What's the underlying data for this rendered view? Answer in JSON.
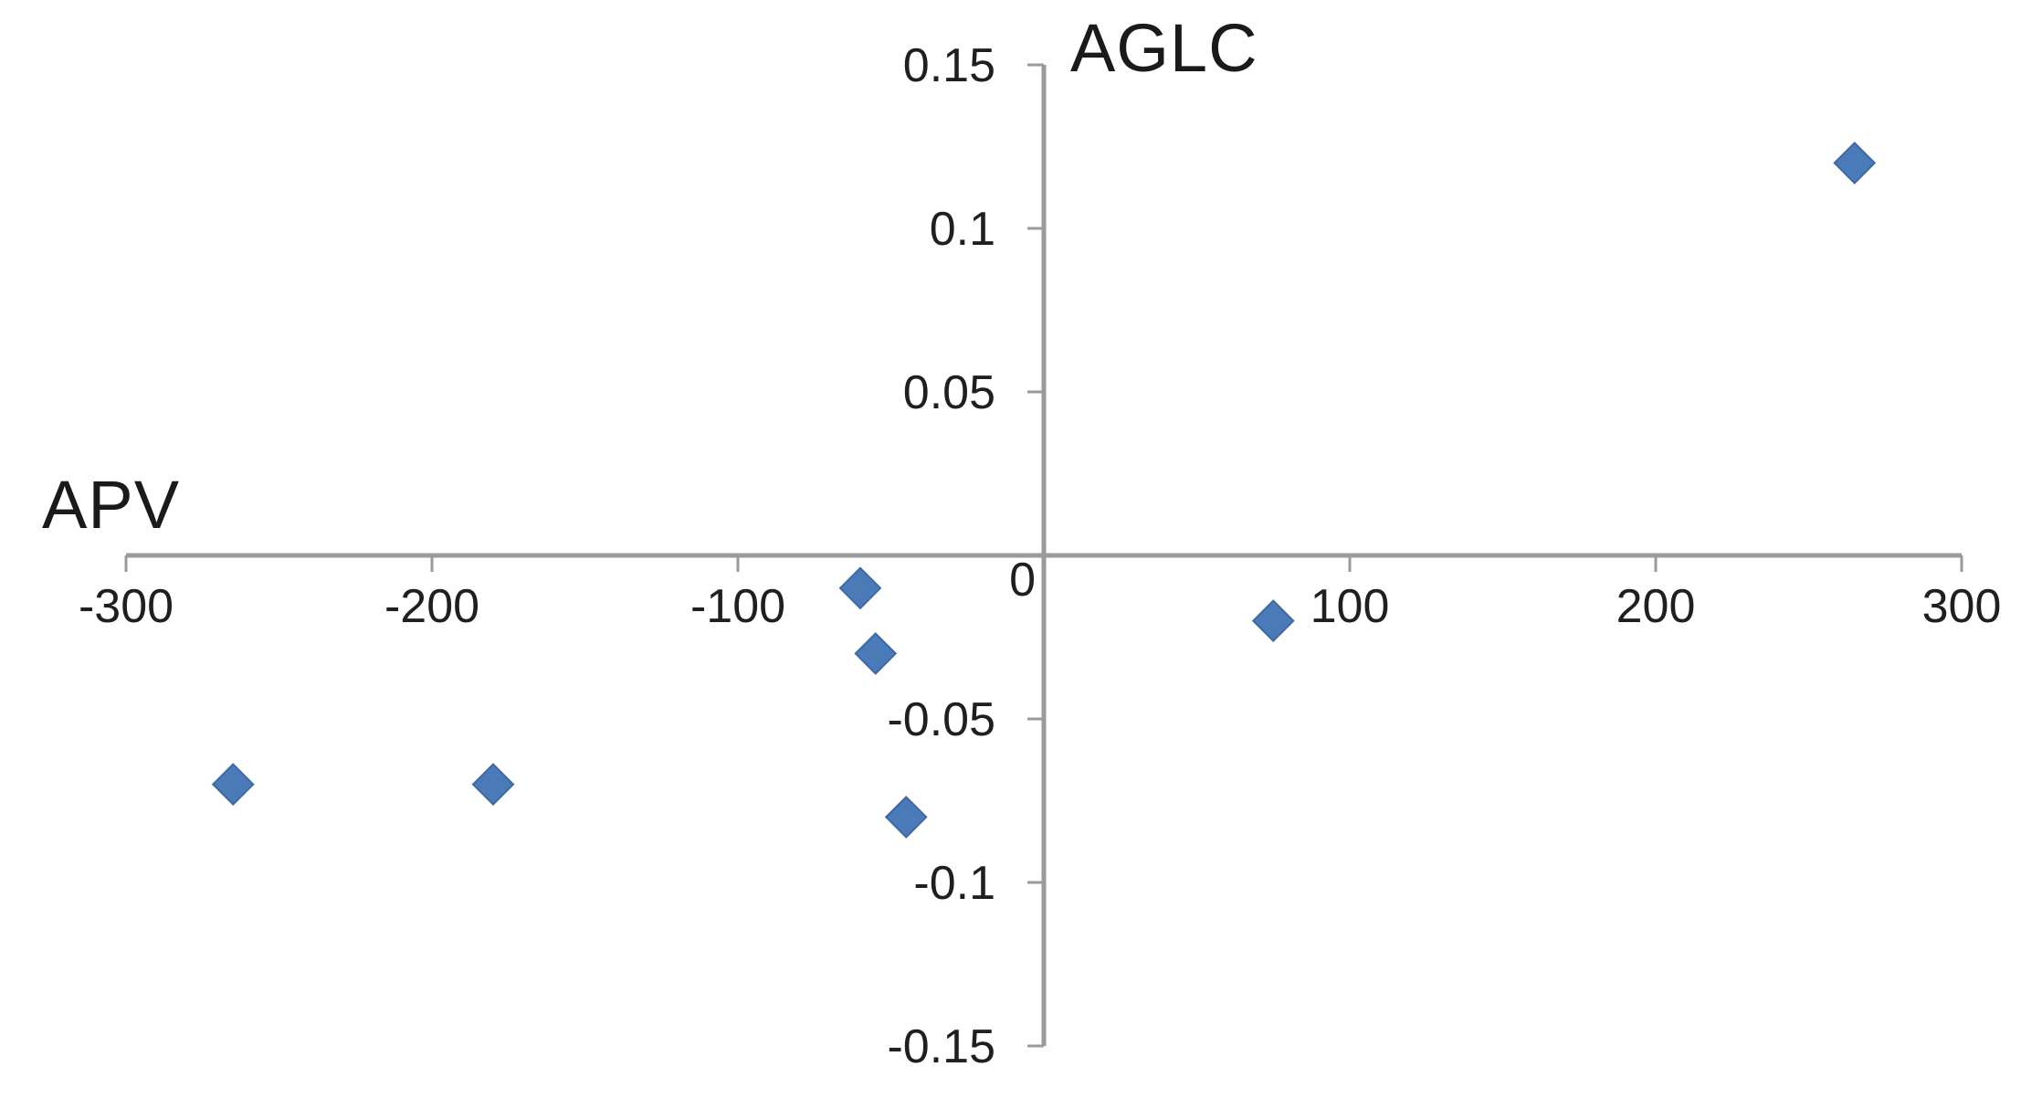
{
  "chart_data": {
    "type": "scatter",
    "title": "",
    "xlabel": "APV",
    "ylabel": "AGLC",
    "xlim": [
      -300,
      300
    ],
    "ylim": [
      -0.15,
      0.15
    ],
    "x_ticks": [
      -300,
      -200,
      -100,
      100,
      200,
      300
    ],
    "x_tick_labels": [
      "-300",
      "-200",
      "-100",
      "100",
      "200",
      "300"
    ],
    "y_ticks": [
      0.15,
      0.1,
      0.05,
      -0.05,
      -0.1,
      -0.15
    ],
    "y_tick_labels": [
      "0.15",
      "0.1",
      "0.05",
      "-0.05",
      "-0.1",
      "-0.15"
    ],
    "origin_label": "0",
    "grid": false,
    "legend": "none",
    "marker": "diamond",
    "marker_color": "#4a7ab8",
    "marker_border_color": "#3e6aa3",
    "axis_color": "#9a9a9a",
    "text_color": "#1f1f1f",
    "points": [
      {
        "x": -265,
        "y": -0.07
      },
      {
        "x": -180,
        "y": -0.07
      },
      {
        "x": -60,
        "y": -0.01
      },
      {
        "x": -55,
        "y": -0.03
      },
      {
        "x": -45,
        "y": -0.08
      },
      {
        "x": 75,
        "y": -0.02
      },
      {
        "x": 265,
        "y": 0.12
      }
    ]
  }
}
